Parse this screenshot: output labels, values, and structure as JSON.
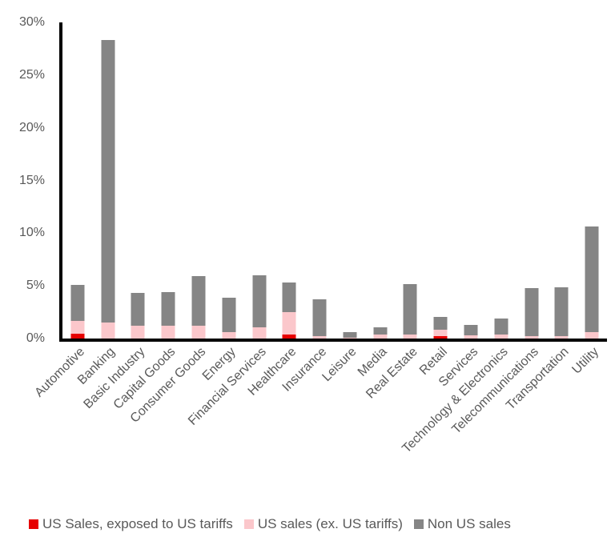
{
  "chart_data": {
    "type": "bar",
    "stacked": true,
    "title": "",
    "xlabel": "",
    "ylabel": "",
    "categories": [
      "Automotive",
      "Banking",
      "Basic Industry",
      "Capital Goods",
      "Consumer Goods",
      "Energy",
      "Financial Services",
      "Healthcare",
      "Insurance",
      "Leisure",
      "Media",
      "Real Estate",
      "Retail",
      "Services",
      "Technology & Electronics",
      "Telecommunications",
      "Transportation",
      "Utility"
    ],
    "series": [
      {
        "name": "US Sales, exposed to US tariffs",
        "color": "#e60000",
        "values": [
          0.45,
          0,
          0,
          0,
          0,
          0,
          0,
          0.4,
          0,
          0,
          0,
          0,
          0.2,
          0,
          0,
          0,
          0,
          0
        ]
      },
      {
        "name": "US sales (ex. US tariffs)",
        "color": "#fbc7cb",
        "values": [
          1.25,
          1.5,
          1.2,
          1.25,
          1.25,
          0.6,
          1.1,
          2.1,
          0.25,
          0.1,
          0.4,
          0.35,
          0.6,
          0.3,
          0.4,
          0.2,
          0.2,
          0.6
        ]
      },
      {
        "name": "Non US sales",
        "color": "#858585",
        "values": [
          3.4,
          26.8,
          3.1,
          3.15,
          4.7,
          3.3,
          4.9,
          2.8,
          3.45,
          0.5,
          0.65,
          4.85,
          1.25,
          1.0,
          1.5,
          4.55,
          4.7,
          10.05
        ]
      }
    ],
    "ylim": [
      0,
      30
    ],
    "yticks": [
      {
        "value": 0,
        "label": "0%"
      },
      {
        "value": 5,
        "label": "5%"
      },
      {
        "value": 10,
        "label": "10%"
      },
      {
        "value": 15,
        "label": "15%"
      },
      {
        "value": 20,
        "label": "20%"
      },
      {
        "value": 25,
        "label": "25%"
      },
      {
        "value": 30,
        "label": "30%"
      }
    ],
    "grid": false,
    "legend_position": "bottom",
    "axis_color": "#000000",
    "tick_label_color": "#595959"
  }
}
